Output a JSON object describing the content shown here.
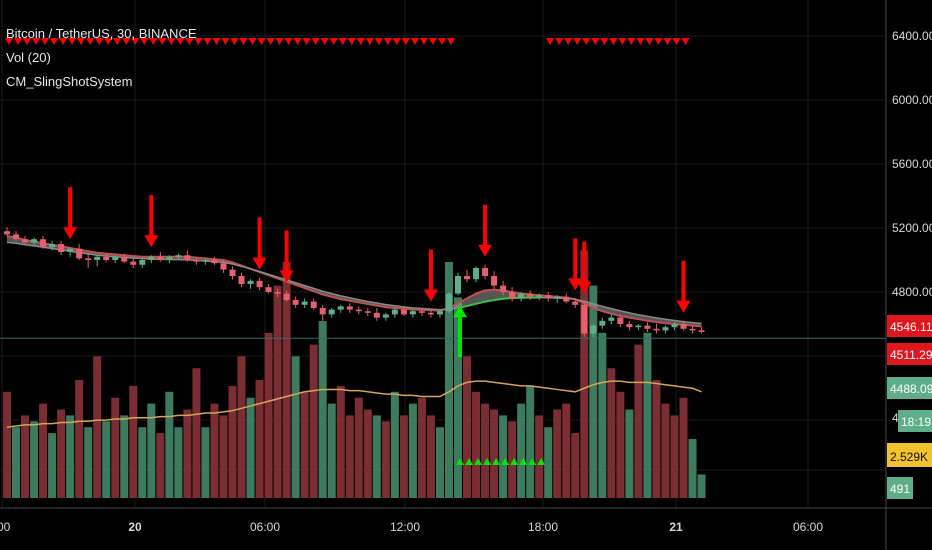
{
  "legend": {
    "symbol": "Bitcoin / TetherUS, 30, BINANCE",
    "volume": "Vol (20)",
    "indicator": "CM_SlingShotSystem"
  },
  "colors": {
    "background": "#000000",
    "grid": "#1c1c1c",
    "up": "#5fae8a",
    "down": "#e3606c",
    "vol_up": "#3d7a5e",
    "vol_down": "#7a2d33",
    "signal_arrow": "#ff0000",
    "buy_arrow": "#00e600",
    "ema_fast": "#c0504d",
    "ema_slow": "#8a8a8a",
    "vol_ma": "#d4a55a"
  },
  "price_axis": {
    "ticks": [
      "6400.00",
      "6000.00",
      "5600.00",
      "5200.00",
      "4800.00"
    ],
    "partial_tick": "4"
  },
  "time_axis": {
    "ticks": [
      ":00",
      "20",
      "06:00",
      "12:00",
      "18:00",
      "21",
      "06:00"
    ]
  },
  "badges": {
    "price_current": "4546.11",
    "price_level": "4511.29",
    "price_open": "4488.09",
    "countdown": "18:19",
    "vol_ma": "2.529K",
    "volume": "491"
  },
  "chart_data": {
    "type": "candlestick",
    "interval_minutes": 30,
    "ylim": [
      4300,
      6500
    ],
    "price_ticks": [
      6400,
      6000,
      5600,
      5200,
      4800
    ],
    "candles": [
      {
        "o": 5180,
        "h": 5205,
        "l": 5150,
        "c": 5160
      },
      {
        "o": 5160,
        "h": 5180,
        "l": 5120,
        "c": 5130
      },
      {
        "o": 5130,
        "h": 5150,
        "l": 5090,
        "c": 5110
      },
      {
        "o": 5110,
        "h": 5140,
        "l": 5090,
        "c": 5130
      },
      {
        "o": 5130,
        "h": 5150,
        "l": 5070,
        "c": 5080
      },
      {
        "o": 5080,
        "h": 5120,
        "l": 5060,
        "c": 5100
      },
      {
        "o": 5100,
        "h": 5120,
        "l": 5030,
        "c": 5050
      },
      {
        "o": 5050,
        "h": 5080,
        "l": 5020,
        "c": 5070
      },
      {
        "o": 5070,
        "h": 5100,
        "l": 5000,
        "c": 5010
      },
      {
        "o": 5010,
        "h": 5040,
        "l": 4950,
        "c": 5000
      },
      {
        "o": 5000,
        "h": 5030,
        "l": 4960,
        "c": 5020
      },
      {
        "o": 5020,
        "h": 5040,
        "l": 4990,
        "c": 5000
      },
      {
        "o": 5000,
        "h": 5030,
        "l": 4980,
        "c": 5020
      },
      {
        "o": 5020,
        "h": 5040,
        "l": 4980,
        "c": 4990
      },
      {
        "o": 4990,
        "h": 5010,
        "l": 4950,
        "c": 4970
      },
      {
        "o": 4970,
        "h": 5010,
        "l": 4950,
        "c": 5000
      },
      {
        "o": 5000,
        "h": 5030,
        "l": 4980,
        "c": 5020
      },
      {
        "o": 5020,
        "h": 5050,
        "l": 4990,
        "c": 5000
      },
      {
        "o": 5000,
        "h": 5030,
        "l": 4980,
        "c": 5020
      },
      {
        "o": 5020,
        "h": 5040,
        "l": 5000,
        "c": 5030
      },
      {
        "o": 5030,
        "h": 5060,
        "l": 4990,
        "c": 5000
      },
      {
        "o": 5000,
        "h": 5020,
        "l": 4970,
        "c": 4990
      },
      {
        "o": 4990,
        "h": 5010,
        "l": 4970,
        "c": 5000
      },
      {
        "o": 5000,
        "h": 5020,
        "l": 4970,
        "c": 4980
      },
      {
        "o": 4980,
        "h": 5000,
        "l": 4920,
        "c": 4940
      },
      {
        "o": 4940,
        "h": 4960,
        "l": 4880,
        "c": 4900
      },
      {
        "o": 4900,
        "h": 4920,
        "l": 4830,
        "c": 4850
      },
      {
        "o": 4850,
        "h": 4880,
        "l": 4820,
        "c": 4870
      },
      {
        "o": 4870,
        "h": 4890,
        "l": 4810,
        "c": 4830
      },
      {
        "o": 4830,
        "h": 4850,
        "l": 4790,
        "c": 4800
      },
      {
        "o": 4800,
        "h": 4820,
        "l": 4770,
        "c": 4790
      },
      {
        "o": 4790,
        "h": 4810,
        "l": 4740,
        "c": 4750
      },
      {
        "o": 4750,
        "h": 4770,
        "l": 4700,
        "c": 4720
      },
      {
        "o": 4720,
        "h": 4760,
        "l": 4700,
        "c": 4740
      },
      {
        "o": 4740,
        "h": 4760,
        "l": 4690,
        "c": 4700
      },
      {
        "o": 4700,
        "h": 4720,
        "l": 4620,
        "c": 4660
      },
      {
        "o": 4660,
        "h": 4700,
        "l": 4640,
        "c": 4690
      },
      {
        "o": 4690,
        "h": 4720,
        "l": 4670,
        "c": 4710
      },
      {
        "o": 4710,
        "h": 4730,
        "l": 4670,
        "c": 4690
      },
      {
        "o": 4690,
        "h": 4710,
        "l": 4660,
        "c": 4680
      },
      {
        "o": 4680,
        "h": 4700,
        "l": 4650,
        "c": 4670
      },
      {
        "o": 4670,
        "h": 4700,
        "l": 4620,
        "c": 4640
      },
      {
        "o": 4640,
        "h": 4670,
        "l": 4620,
        "c": 4660
      },
      {
        "o": 4660,
        "h": 4700,
        "l": 4640,
        "c": 4690
      },
      {
        "o": 4690,
        "h": 4710,
        "l": 4650,
        "c": 4660
      },
      {
        "o": 4660,
        "h": 4690,
        "l": 4640,
        "c": 4680
      },
      {
        "o": 4680,
        "h": 4700,
        "l": 4650,
        "c": 4670
      },
      {
        "o": 4670,
        "h": 4690,
        "l": 4640,
        "c": 4660
      },
      {
        "o": 4660,
        "h": 4690,
        "l": 4640,
        "c": 4680
      },
      {
        "o": 4680,
        "h": 4800,
        "l": 4670,
        "c": 4790
      },
      {
        "o": 4790,
        "h": 4920,
        "l": 4780,
        "c": 4900
      },
      {
        "o": 4900,
        "h": 4940,
        "l": 4860,
        "c": 4880
      },
      {
        "o": 4880,
        "h": 4960,
        "l": 4860,
        "c": 4950
      },
      {
        "o": 4950,
        "h": 4970,
        "l": 4880,
        "c": 4900
      },
      {
        "o": 4900,
        "h": 4930,
        "l": 4820,
        "c": 4840
      },
      {
        "o": 4840,
        "h": 4870,
        "l": 4780,
        "c": 4800
      },
      {
        "o": 4800,
        "h": 4830,
        "l": 4740,
        "c": 4760
      },
      {
        "o": 4760,
        "h": 4800,
        "l": 4740,
        "c": 4790
      },
      {
        "o": 4790,
        "h": 4810,
        "l": 4750,
        "c": 4770
      },
      {
        "o": 4770,
        "h": 4790,
        "l": 4750,
        "c": 4780
      },
      {
        "o": 4780,
        "h": 4800,
        "l": 4740,
        "c": 4760
      },
      {
        "o": 4760,
        "h": 4780,
        "l": 4730,
        "c": 4770
      },
      {
        "o": 4770,
        "h": 4790,
        "l": 4730,
        "c": 4740
      },
      {
        "o": 4740,
        "h": 4760,
        "l": 4700,
        "c": 4720
      },
      {
        "o": 4720,
        "h": 4740,
        "l": 4520,
        "c": 4540
      },
      {
        "o": 4540,
        "h": 4600,
        "l": 4510,
        "c": 4590
      },
      {
        "o": 4590,
        "h": 4640,
        "l": 4570,
        "c": 4620
      },
      {
        "o": 4620,
        "h": 4660,
        "l": 4600,
        "c": 4640
      },
      {
        "o": 4640,
        "h": 4660,
        "l": 4580,
        "c": 4600
      },
      {
        "o": 4600,
        "h": 4620,
        "l": 4560,
        "c": 4580
      },
      {
        "o": 4580,
        "h": 4600,
        "l": 4560,
        "c": 4590
      },
      {
        "o": 4590,
        "h": 4610,
        "l": 4550,
        "c": 4570
      },
      {
        "o": 4570,
        "h": 4600,
        "l": 4540,
        "c": 4560
      },
      {
        "o": 4560,
        "h": 4590,
        "l": 4540,
        "c": 4580
      },
      {
        "o": 4580,
        "h": 4610,
        "l": 4560,
        "c": 4600
      },
      {
        "o": 4600,
        "h": 4620,
        "l": 4560,
        "c": 4570
      },
      {
        "o": 4570,
        "h": 4590,
        "l": 4540,
        "c": 4560
      },
      {
        "o": 4560,
        "h": 4580,
        "l": 4540,
        "c": 4550
      }
    ],
    "ema_fast": [
      5150,
      5140,
      5125,
      5115,
      5105,
      5095,
      5085,
      5075,
      5065,
      5055,
      5045,
      5040,
      5035,
      5030,
      5025,
      5020,
      5020,
      5020,
      5020,
      5020,
      5020,
      5015,
      5010,
      5005,
      5000,
      4985,
      4965,
      4945,
      4925,
      4905,
      4885,
      4865,
      4845,
      4825,
      4805,
      4785,
      4770,
      4755,
      4745,
      4735,
      4725,
      4715,
      4705,
      4700,
      4695,
      4690,
      4688,
      4686,
      4684,
      4700,
      4730,
      4760,
      4790,
      4810,
      4815,
      4810,
      4800,
      4790,
      4785,
      4780,
      4775,
      4770,
      4765,
      4755,
      4730,
      4700,
      4680,
      4665,
      4650,
      4640,
      4630,
      4620,
      4612,
      4605,
      4600,
      4595,
      4590,
      4585
    ],
    "ema_slow": [
      5110,
      5105,
      5095,
      5088,
      5080,
      5072,
      5063,
      5055,
      5046,
      5038,
      5030,
      5025,
      5020,
      5016,
      5012,
      5009,
      5006,
      5004,
      5003,
      5002,
      5001,
      4998,
      4994,
      4990,
      4985,
      4975,
      4960,
      4945,
      4928,
      4910,
      4893,
      4875,
      4858,
      4840,
      4823,
      4805,
      4790,
      4776,
      4764,
      4752,
      4741,
      4731,
      4721,
      4714,
      4707,
      4701,
      4697,
      4693,
      4690,
      4692,
      4700,
      4712,
      4726,
      4740,
      4750,
      4758,
      4762,
      4764,
      4765,
      4765,
      4764,
      4762,
      4759,
      4754,
      4742,
      4726,
      4710,
      4696,
      4682,
      4670,
      4658,
      4648,
      4638,
      4630,
      4622,
      4615,
      4609,
      4603
    ],
    "volume": [
      90,
      60,
      70,
      65,
      80,
      55,
      75,
      70,
      100,
      60,
      120,
      65,
      85,
      70,
      95,
      60,
      80,
      55,
      90,
      60,
      75,
      110,
      60,
      80,
      70,
      95,
      120,
      85,
      100,
      140,
      180,
      200,
      120,
      90,
      130,
      150,
      80,
      95,
      70,
      85,
      75,
      70,
      65,
      90,
      70,
      80,
      85,
      70,
      60,
      200,
      170,
      120,
      90,
      80,
      75,
      70,
      65,
      80,
      95,
      70,
      60,
      75,
      80,
      55,
      210,
      180,
      140,
      110,
      90,
      75,
      130,
      140,
      100,
      80,
      70,
      85,
      50,
      20
    ],
    "volume_up": [
      false,
      true,
      false,
      true,
      false,
      true,
      false,
      true,
      false,
      true,
      false,
      true,
      false,
      true,
      false,
      true,
      true,
      false,
      true,
      true,
      false,
      false,
      true,
      false,
      false,
      false,
      false,
      true,
      false,
      false,
      false,
      false,
      true,
      false,
      false,
      true,
      true,
      false,
      false,
      false,
      false,
      true,
      false,
      true,
      false,
      true,
      false,
      false,
      true,
      true,
      true,
      false,
      false,
      false,
      false,
      true,
      false,
      true,
      true,
      false,
      true,
      false,
      false,
      false,
      false,
      true,
      true,
      false,
      false,
      true,
      false,
      true,
      false,
      false,
      false,
      false,
      true,
      true
    ],
    "volume_ma": [
      60,
      61,
      62,
      62,
      63,
      63,
      64,
      64,
      65,
      65,
      66,
      66,
      67,
      67,
      68,
      68,
      68,
      69,
      69,
      70,
      70,
      71,
      72,
      72,
      73,
      74,
      76,
      78,
      80,
      82,
      84,
      86,
      88,
      90,
      91,
      92,
      92,
      92,
      91,
      91,
      90,
      89,
      88,
      88,
      87,
      87,
      86,
      86,
      86,
      90,
      95,
      98,
      99,
      99,
      98,
      97,
      96,
      95,
      95,
      94,
      93,
      92,
      91,
      90,
      93,
      96,
      98,
      99,
      99,
      98,
      98,
      98,
      97,
      96,
      95,
      94,
      93,
      90
    ],
    "sell_signal_candles": [
      7,
      16,
      28,
      31,
      47,
      53,
      63,
      64,
      75
    ],
    "buy_signal_candles": [
      50
    ],
    "sell_condition_markers": [
      0,
      1,
      2,
      3,
      4,
      5,
      6,
      7,
      8,
      9,
      10,
      11,
      12,
      13,
      14,
      15,
      16,
      17,
      18,
      19,
      20,
      21,
      22,
      23,
      24,
      25,
      26,
      27,
      28,
      29,
      30,
      31,
      32,
      33,
      34,
      35,
      36,
      37,
      38,
      39,
      40,
      41,
      42,
      43,
      44,
      45,
      46,
      47,
      48,
      49,
      60,
      61,
      62,
      63,
      64,
      65,
      66,
      67,
      68,
      69,
      70,
      71,
      72,
      73,
      74,
      75
    ],
    "buy_condition_markers": [
      50,
      51,
      52,
      53,
      54,
      55,
      56,
      57,
      58,
      59
    ],
    "horizontal_line": 4511.29
  }
}
